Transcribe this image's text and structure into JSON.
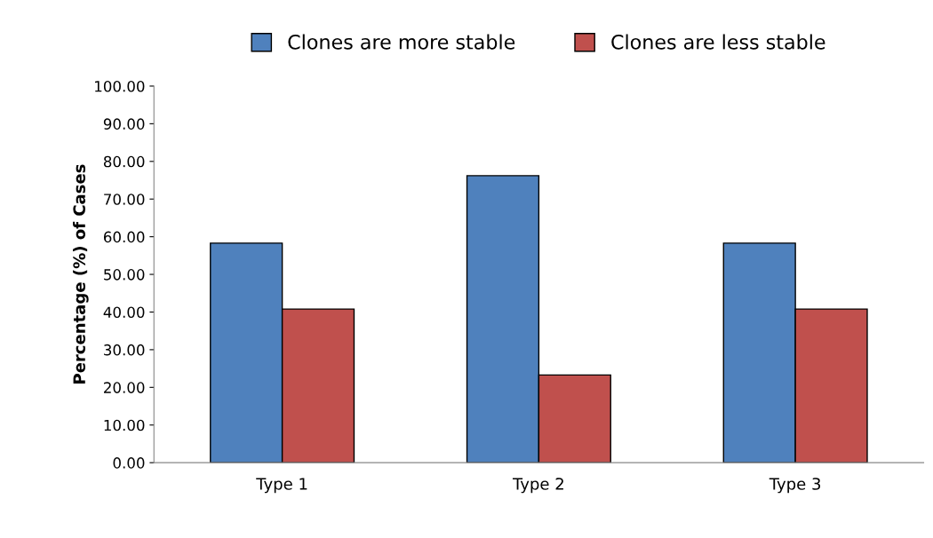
{
  "chart_data": {
    "type": "bar",
    "ylabel": "Percentage (%) of Cases",
    "categories": [
      "Type 1",
      "Type 2",
      "Type 3"
    ],
    "series": [
      {
        "name": "Clones are more stable",
        "color": "#4f81bd",
        "values": [
          58.3,
          76.2,
          58.3
        ]
      },
      {
        "name": "Clones are less stable",
        "color": "#c0504d",
        "values": [
          40.8,
          23.3,
          40.8
        ]
      }
    ],
    "ylim": [
      0,
      100
    ],
    "yticks": [
      {
        "value": 0,
        "label": "0.00"
      },
      {
        "value": 10,
        "label": "10.00"
      },
      {
        "value": 20,
        "label": "20.00"
      },
      {
        "value": 30,
        "label": "30.00"
      },
      {
        "value": 40,
        "label": "40.00"
      },
      {
        "value": 50,
        "label": "50.00"
      },
      {
        "value": 60,
        "label": "60.00"
      },
      {
        "value": 70,
        "label": "70.00"
      },
      {
        "value": 80,
        "label": "80.00"
      },
      {
        "value": 90,
        "label": "90.00"
      },
      {
        "value": 100,
        "label": "100.00"
      }
    ],
    "grid": false,
    "legend": "top"
  }
}
